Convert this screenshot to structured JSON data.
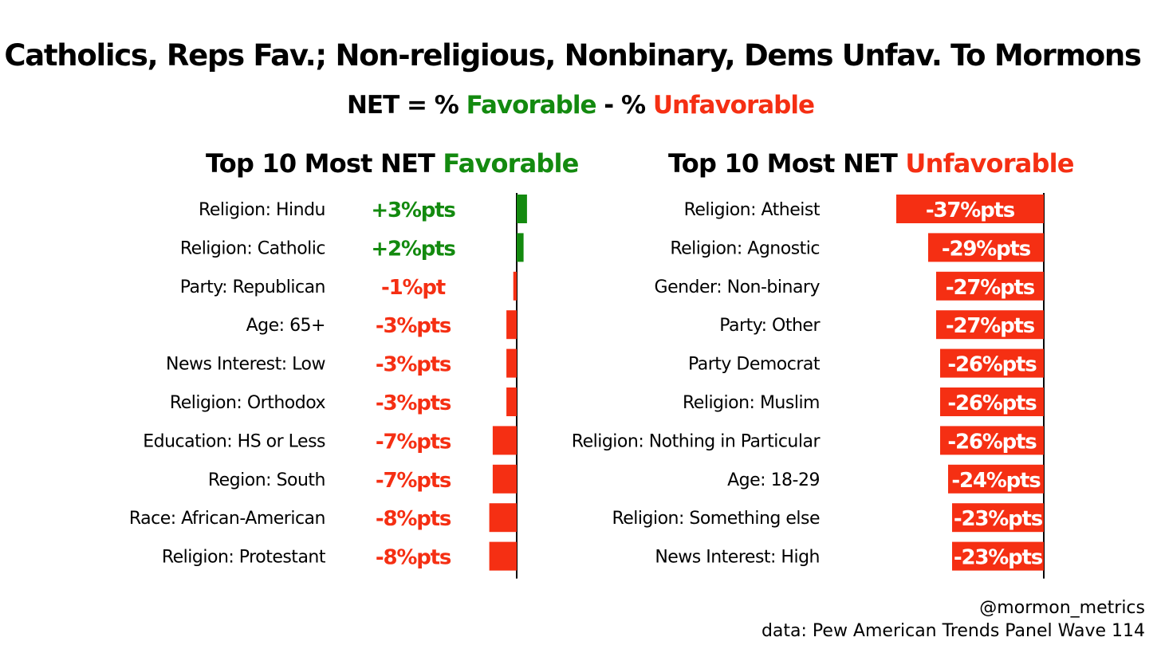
{
  "title": "Catholics, Reps Fav.; Non-religious, Nonbinary, Dems Unfav. To Mormons",
  "subtitle": {
    "prefix": "NET = % ",
    "favorable": "Favorable",
    "middle": " - % ",
    "unfavorable": "Unfavorable"
  },
  "colors": {
    "favorable": "#138a0f",
    "unfavorable": "#f52f13",
    "axis": "#000000"
  },
  "credit": {
    "handle": "@mormon_metrics",
    "source": "data: Pew American Trends Panel Wave 114"
  },
  "chart_data": [
    {
      "type": "bar",
      "orientation": "horizontal",
      "title_prefix": "Top 10 Most NET ",
      "title_highlight": "Favorable",
      "categories": [
        "Religion: Hindu",
        "Religion: Catholic",
        "Party: Republican",
        "Age: 65+",
        "News Interest: Low",
        "Religion: Orthodox",
        "Education: HS or Less",
        "Region: South",
        "Race: African-American",
        "Religion: Protestant"
      ],
      "values": [
        3,
        2,
        -1,
        -3,
        -3,
        -3,
        -7,
        -7,
        -8,
        -8
      ],
      "labels": [
        "+3%pts",
        "+2%pts",
        "-1%pt",
        "-3%pts",
        "-3%pts",
        "-3%pts",
        "-7%pts",
        "-7%pts",
        "-8%pts",
        "-8%pts"
      ]
    },
    {
      "type": "bar",
      "orientation": "horizontal",
      "title_prefix": "Top 10 Most NET ",
      "title_highlight": "Unfavorable",
      "categories": [
        "Religion: Atheist",
        "Religion: Agnostic",
        "Gender: Non-binary",
        "Party: Other",
        "Party Democrat",
        "Religion: Muslim",
        "Religion: Nothing in Particular",
        "Age: 18-29",
        "Religion: Something else",
        "News Interest: High"
      ],
      "values": [
        -37,
        -29,
        -27,
        -27,
        -26,
        -26,
        -26,
        -24,
        -23,
        -23
      ],
      "labels": [
        "-37%pts",
        "-29%pts",
        "-27%pts",
        "-27%pts",
        "-26%pts",
        "-26%pts",
        "-26%pts",
        "-24%pts",
        "-23%pts",
        "-23%pts"
      ]
    }
  ]
}
